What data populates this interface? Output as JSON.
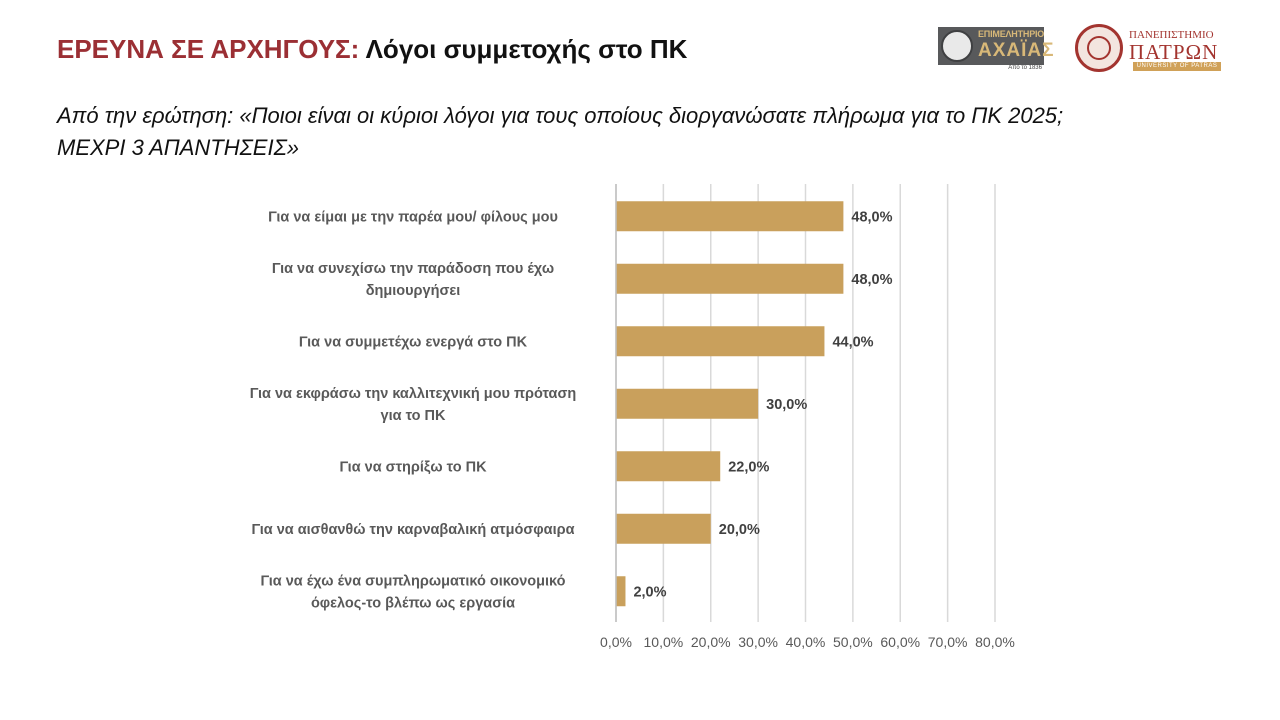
{
  "header": {
    "title_lead": "ΕΡΕΥΝΑ ΣΕ ΑΡΧΗΓΟΥΣ:",
    "title_rest": "Λόγοι συμμετοχής στο ΠΚ",
    "question_line1": "Από την ερώτηση: «Ποιοι είναι οι κύριοι λόγοι για τους οποίους διοργανώσατε πλήρωμα για το ΠΚ 2025;",
    "question_line2": "ΜΕΧΡΙ 3 ΑΠΑΝΤΗΣΕΙΣ»"
  },
  "logos": {
    "chamber": {
      "line1": "ΕΠΙΜΕΛΗΤΗΡΙΟ",
      "line2": "ΑΧΑΪΑΣ",
      "line3": "Από το 1836"
    },
    "university": {
      "line1": "ΠΑΝΕΠΙΣΤΗΜΙΟ",
      "line2": "ΠΑΤΡΩΝ",
      "line3": "UNIVERSITY OF PATRAS"
    }
  },
  "colors": {
    "bar": "#c9a05c",
    "title_accent": "#9b2f34",
    "grid": "#d9d9d9"
  },
  "chart_data": {
    "type": "bar",
    "orientation": "horizontal",
    "categories": [
      [
        "Για να είμαι με την παρέα μου/ φίλους μου"
      ],
      [
        "Για να συνεχίσω την παράδοση που έχω",
        "δημιουργήσει"
      ],
      [
        "Για να συμμετέχω ενεργά στο ΠΚ"
      ],
      [
        "Για να εκφράσω την καλλιτεχνική μου πρόταση",
        "για το ΠΚ"
      ],
      [
        "Για να στηρίξω το ΠΚ"
      ],
      [
        "Για να αισθανθώ την καρναβαλική ατμόσφαιρα"
      ],
      [
        "Για να έχω ένα συμπληρωματικό οικονομικό",
        "όφελος-το βλέπω ως εργασία"
      ]
    ],
    "values": [
      48.0,
      48.0,
      44.0,
      30.0,
      22.0,
      20.0,
      2.0
    ],
    "value_labels": [
      "48,0%",
      "48,0%",
      "44,0%",
      "30,0%",
      "22,0%",
      "20,0%",
      "2,0%"
    ],
    "xlim": [
      0,
      80
    ],
    "x_ticks": [
      "0,0%",
      "10,0%",
      "20,0%",
      "30,0%",
      "40,0%",
      "50,0%",
      "60,0%",
      "70,0%",
      "80,0%"
    ],
    "grid": true,
    "legend": "none"
  }
}
